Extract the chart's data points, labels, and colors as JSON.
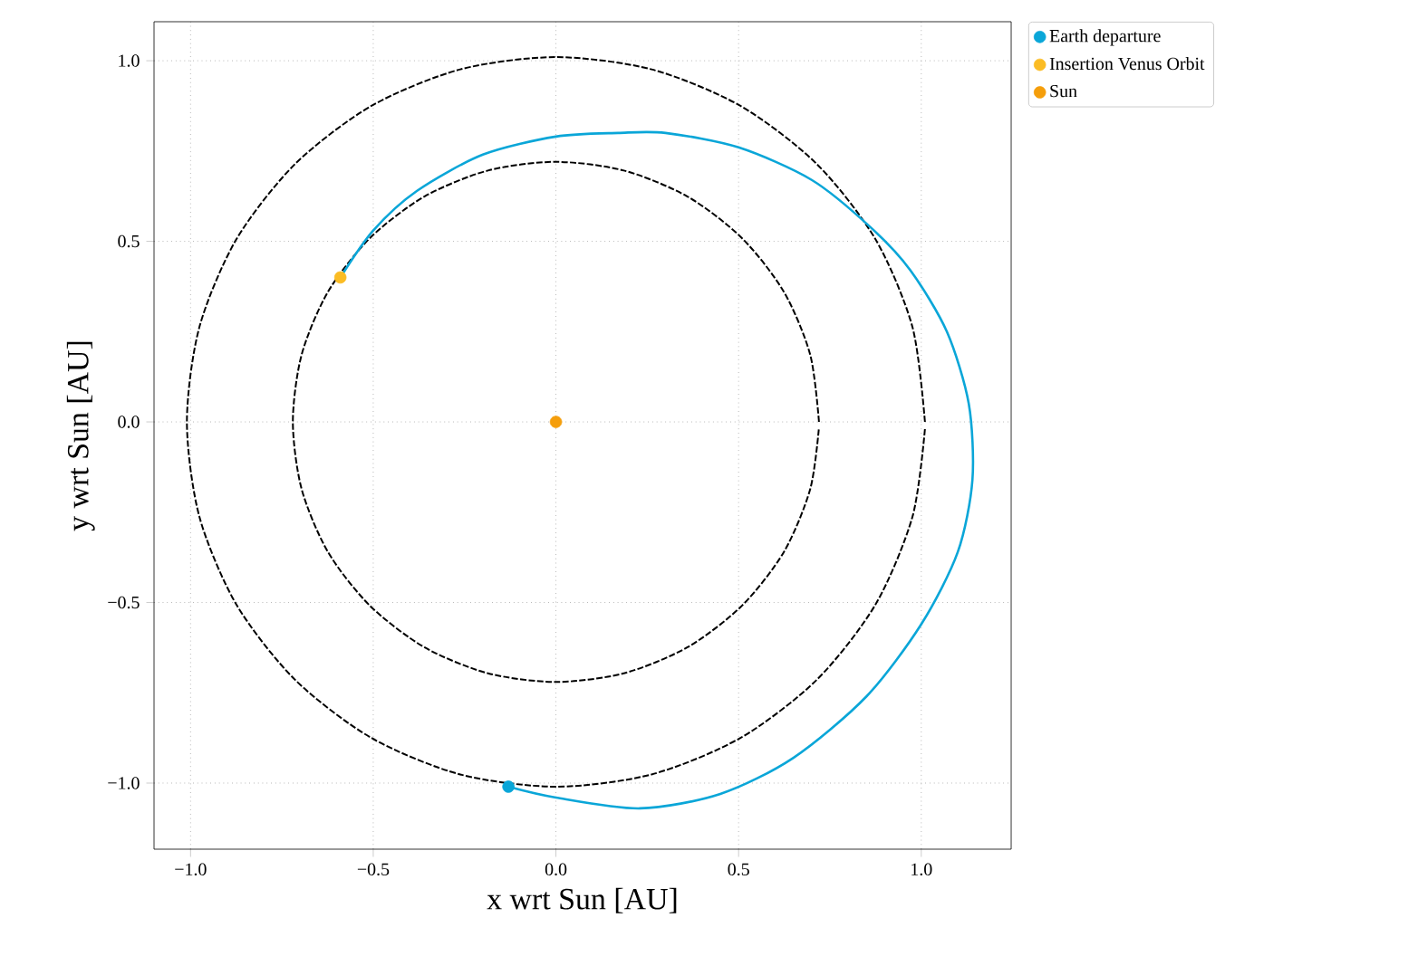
{
  "chart_data": {
    "type": "line",
    "xlabel": "x wrt Sun [AU]",
    "ylabel": "y wrt Sun [AU]",
    "xlim": [
      -1.1,
      1.246
    ],
    "ylim": [
      -1.183,
      1.108
    ],
    "xticks": [
      {
        "value": -1.0,
        "label": "−1.0"
      },
      {
        "value": -0.5,
        "label": "−0.5"
      },
      {
        "value": 0.0,
        "label": "0.0"
      },
      {
        "value": 0.5,
        "label": "0.5"
      },
      {
        "value": 1.0,
        "label": "1.0"
      }
    ],
    "yticks": [
      {
        "value": -1.0,
        "label": "−1.0"
      },
      {
        "value": -0.5,
        "label": "−0.5"
      },
      {
        "value": 0.0,
        "label": "0.0"
      },
      {
        "value": 0.5,
        "label": "0.5"
      },
      {
        "value": 1.0,
        "label": "1.0"
      }
    ],
    "grid": true,
    "legend": "top right",
    "series": [
      {
        "type": "line",
        "line_style": "dashed",
        "marker": "none",
        "color": "#000000",
        "x": [
          1.01,
          0.976,
          0.875,
          0.714,
          0.505,
          0.262,
          0,
          -0.262,
          -0.505,
          -0.714,
          -0.875,
          -0.976,
          -1.01,
          -0.976,
          -0.875,
          -0.714,
          -0.505,
          -0.262,
          0,
          0.262,
          0.505,
          0.714,
          0.875,
          0.976,
          1.01
        ],
        "values": [
          0,
          0.262,
          0.505,
          0.714,
          0.875,
          0.976,
          1.01,
          0.976,
          0.875,
          0.714,
          0.505,
          0.262,
          0,
          -0.262,
          -0.505,
          -0.714,
          -0.875,
          -0.976,
          -1.01,
          -0.976,
          -0.875,
          -0.714,
          -0.505,
          -0.262,
          -0.02
        ]
      },
      {
        "type": "line",
        "line_style": "dashed",
        "marker": "none",
        "color": "#000000",
        "x": [
          0.72,
          0.696,
          0.624,
          0.509,
          0.36,
          0.186,
          0,
          -0.186,
          -0.36,
          -0.509,
          -0.624,
          -0.696,
          -0.72,
          -0.696,
          -0.624,
          -0.509,
          -0.36,
          -0.186,
          0,
          0.186,
          0.36,
          0.509,
          0.624,
          0.696,
          0.72
        ],
        "values": [
          0,
          0.186,
          0.36,
          0.509,
          0.624,
          0.696,
          0.72,
          0.696,
          0.624,
          0.509,
          0.36,
          0.186,
          0,
          -0.186,
          -0.36,
          -0.509,
          -0.624,
          -0.696,
          -0.72,
          -0.696,
          -0.624,
          -0.509,
          -0.36,
          -0.186,
          -0.015
        ]
      },
      {
        "type": "line",
        "line_style": "solid",
        "marker": "none",
        "color": "#0aa6d8",
        "x": [
          -0.13,
          0.0,
          0.23,
          0.45,
          0.65,
          0.85,
          1.0,
          1.1,
          1.14,
          1.13,
          1.07,
          0.97,
          0.86,
          0.7,
          0.5,
          0.3,
          0.17,
          0.0,
          -0.2,
          -0.38,
          -0.5,
          -0.59
        ],
        "values": [
          -1.01,
          -1.04,
          -1.07,
          -1.03,
          -0.93,
          -0.76,
          -0.56,
          -0.36,
          -0.16,
          0.05,
          0.25,
          0.42,
          0.54,
          0.67,
          0.76,
          0.8,
          0.8,
          0.79,
          0.74,
          0.64,
          0.53,
          0.4
        ]
      },
      {
        "type": "scatter",
        "name": "Earth departure",
        "marker": "circle",
        "color": "#0aa6d8",
        "x": [
          -0.13
        ],
        "values": [
          -1.01
        ]
      },
      {
        "type": "scatter",
        "name": "Insertion Venus Orbit",
        "marker": "circle",
        "color": "#fbbc24",
        "x": [
          -0.59
        ],
        "values": [
          0.4
        ]
      },
      {
        "type": "scatter",
        "name": "Sun",
        "marker": "circle",
        "color": "#f59e0b",
        "x": [
          0.0
        ],
        "values": [
          0.0
        ]
      }
    ]
  }
}
